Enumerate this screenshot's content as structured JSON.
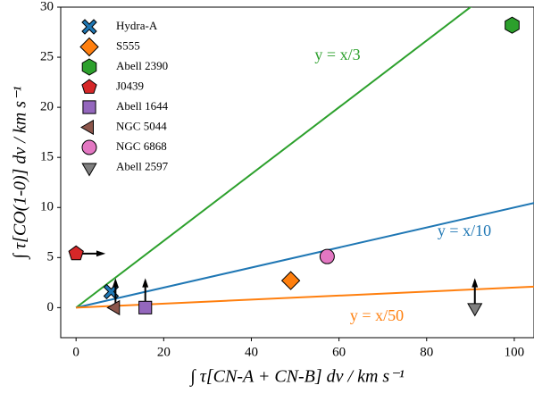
{
  "chart_data": {
    "type": "scatter",
    "xlabel": "∫ τ[CN-A + CN-B] dv / km s⁻¹",
    "ylabel": "∫ τ[CO(1-0)] dv / km s⁻¹",
    "xlim": [
      -3.5,
      104.5
    ],
    "ylim": [
      -3,
      30
    ],
    "xticks": [
      0,
      20,
      40,
      60,
      80,
      100
    ],
    "yticks": [
      0,
      5,
      10,
      15,
      20,
      25,
      30
    ],
    "legend": "upper left",
    "series": [
      {
        "name": "Hydra-A",
        "color": "#1f77b4",
        "marker": "X",
        "x": [
          8
        ],
        "values": [
          1.6
        ]
      },
      {
        "name": "S555",
        "color": "#ff7f0e",
        "marker": "D",
        "x": [
          49
        ],
        "values": [
          2.7
        ]
      },
      {
        "name": "Abell 2390",
        "color": "#2ca02c",
        "marker": "h",
        "x": [
          99.5
        ],
        "values": [
          28.2
        ]
      },
      {
        "name": "J0439",
        "color": "#d62728",
        "marker": "p",
        "x": [
          0
        ],
        "values": [
          5.4
        ],
        "limit": "right"
      },
      {
        "name": "Abell 1644",
        "color": "#9467bd",
        "marker": "s",
        "x": [
          15.8
        ],
        "values": [
          0
        ],
        "limit": "up"
      },
      {
        "name": "NGC 5044",
        "color": "#8c564b",
        "marker": "<",
        "x": [
          9
        ],
        "values": [
          0
        ],
        "limit": "up"
      },
      {
        "name": "NGC 6868",
        "color": "#e377c2",
        "marker": "o",
        "x": [
          57.3
        ],
        "values": [
          5.1
        ]
      },
      {
        "name": "Abell 2597",
        "color": "#7f7f7f",
        "marker": "v",
        "x": [
          91
        ],
        "values": [
          0
        ],
        "limit": "up"
      }
    ],
    "lines": [
      {
        "label": "y = x/3",
        "divisor": 3,
        "color": "#2ca02c"
      },
      {
        "label": "y = x/10",
        "divisor": 10,
        "color": "#1f77b4"
      },
      {
        "label": "y = x/50",
        "divisor": 50,
        "color": "#ff7f0e"
      }
    ]
  }
}
